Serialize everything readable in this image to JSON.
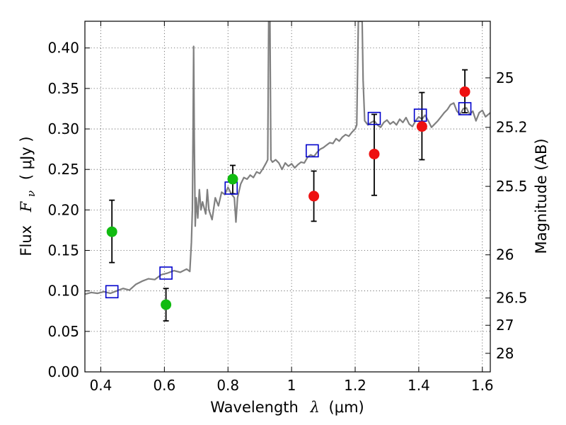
{
  "chart_data": {
    "type": "scatter",
    "xlabel_text": "Wavelength",
    "xlabel_symbol": "λ",
    "xlabel_unit": "(μm)",
    "ylabel_text": "Flux",
    "ylabel_symbol": "F",
    "ylabel_subscript": "ν",
    "ylabel_unit": "( μJy )",
    "y2label": "Magnitude (AB)",
    "xlim": [
      0.35,
      1.625
    ],
    "ylim": [
      0.0,
      0.433
    ],
    "x_ticks": [
      0.4,
      0.6,
      0.8,
      1.0,
      1.2,
      1.4,
      1.6
    ],
    "x_tick_labels": [
      "0.4",
      "0.6",
      "0.8",
      "1",
      "1.2",
      "1.4",
      "1.6"
    ],
    "y_ticks": [
      0.0,
      0.05,
      0.1,
      0.15,
      0.2,
      0.25,
      0.3,
      0.35,
      0.4
    ],
    "y_tick_labels": [
      "0.00",
      "0.05",
      "0.10",
      "0.15",
      "0.20",
      "0.25",
      "0.30",
      "0.35",
      "0.40"
    ],
    "mag_ticks": [
      25,
      25.2,
      25.5,
      26,
      26.5,
      27,
      28
    ],
    "mag_tick_labels": [
      "25",
      "25.2",
      "25.5",
      "26",
      "26.5",
      "27",
      "28"
    ],
    "grid": true,
    "colors": {
      "spectrum": "#808080",
      "green_points": "#11bb11",
      "red_points": "#ee1111",
      "model_squares": "#0000cc",
      "errorbars": "#000000"
    },
    "series": [
      {
        "name": "model spectrum",
        "kind": "line",
        "points": [
          [
            0.35,
            0.096
          ],
          [
            0.37,
            0.098
          ],
          [
            0.39,
            0.097
          ],
          [
            0.41,
            0.099
          ],
          [
            0.43,
            0.097
          ],
          [
            0.45,
            0.1
          ],
          [
            0.47,
            0.103
          ],
          [
            0.49,
            0.101
          ],
          [
            0.51,
            0.108
          ],
          [
            0.53,
            0.112
          ],
          [
            0.55,
            0.115
          ],
          [
            0.57,
            0.114
          ],
          [
            0.59,
            0.12
          ],
          [
            0.61,
            0.122
          ],
          [
            0.63,
            0.125
          ],
          [
            0.65,
            0.123
          ],
          [
            0.67,
            0.127
          ],
          [
            0.68,
            0.124
          ],
          [
            0.685,
            0.16
          ],
          [
            0.688,
            0.2
          ],
          [
            0.69,
            0.29
          ],
          [
            0.692,
            0.402
          ],
          [
            0.694,
            0.29
          ],
          [
            0.697,
            0.18
          ],
          [
            0.7,
            0.215
          ],
          [
            0.705,
            0.19
          ],
          [
            0.71,
            0.225
          ],
          [
            0.715,
            0.2
          ],
          [
            0.72,
            0.21
          ],
          [
            0.73,
            0.195
          ],
          [
            0.735,
            0.225
          ],
          [
            0.74,
            0.2
          ],
          [
            0.75,
            0.188
          ],
          [
            0.76,
            0.215
          ],
          [
            0.77,
            0.205
          ],
          [
            0.78,
            0.222
          ],
          [
            0.79,
            0.219
          ],
          [
            0.8,
            0.228
          ],
          [
            0.81,
            0.22
          ],
          [
            0.82,
            0.215
          ],
          [
            0.825,
            0.185
          ],
          [
            0.83,
            0.215
          ],
          [
            0.84,
            0.232
          ],
          [
            0.85,
            0.24
          ],
          [
            0.86,
            0.238
          ],
          [
            0.87,
            0.243
          ],
          [
            0.88,
            0.24
          ],
          [
            0.89,
            0.247
          ],
          [
            0.9,
            0.245
          ],
          [
            0.91,
            0.251
          ],
          [
            0.92,
            0.258
          ],
          [
            0.925,
            0.262
          ],
          [
            0.928,
            0.433
          ],
          [
            0.932,
            0.433
          ],
          [
            0.935,
            0.262
          ],
          [
            0.94,
            0.259
          ],
          [
            0.95,
            0.262
          ],
          [
            0.96,
            0.258
          ],
          [
            0.97,
            0.25
          ],
          [
            0.98,
            0.258
          ],
          [
            0.99,
            0.254
          ],
          [
            1.0,
            0.257
          ],
          [
            1.01,
            0.252
          ],
          [
            1.02,
            0.256
          ],
          [
            1.03,
            0.259
          ],
          [
            1.04,
            0.258
          ],
          [
            1.05,
            0.265
          ],
          [
            1.06,
            0.268
          ],
          [
            1.07,
            0.266
          ],
          [
            1.08,
            0.271
          ],
          [
            1.09,
            0.275
          ],
          [
            1.1,
            0.277
          ],
          [
            1.11,
            0.28
          ],
          [
            1.12,
            0.283
          ],
          [
            1.13,
            0.282
          ],
          [
            1.14,
            0.288
          ],
          [
            1.15,
            0.285
          ],
          [
            1.16,
            0.29
          ],
          [
            1.17,
            0.293
          ],
          [
            1.18,
            0.291
          ],
          [
            1.19,
            0.296
          ],
          [
            1.2,
            0.3
          ],
          [
            1.205,
            0.305
          ],
          [
            1.21,
            0.433
          ],
          [
            1.222,
            0.433
          ],
          [
            1.225,
            0.36
          ],
          [
            1.23,
            0.31
          ],
          [
            1.24,
            0.305
          ],
          [
            1.25,
            0.308
          ],
          [
            1.26,
            0.31
          ],
          [
            1.27,
            0.305
          ],
          [
            1.28,
            0.302
          ],
          [
            1.29,
            0.308
          ],
          [
            1.3,
            0.311
          ],
          [
            1.31,
            0.306
          ],
          [
            1.32,
            0.309
          ],
          [
            1.33,
            0.305
          ],
          [
            1.34,
            0.312
          ],
          [
            1.35,
            0.308
          ],
          [
            1.36,
            0.314
          ],
          [
            1.37,
            0.306
          ],
          [
            1.38,
            0.303
          ],
          [
            1.39,
            0.31
          ],
          [
            1.4,
            0.315
          ],
          [
            1.41,
            0.312
          ],
          [
            1.42,
            0.317
          ],
          [
            1.43,
            0.31
          ],
          [
            1.44,
            0.302
          ],
          [
            1.45,
            0.306
          ],
          [
            1.46,
            0.31
          ],
          [
            1.47,
            0.315
          ],
          [
            1.48,
            0.32
          ],
          [
            1.49,
            0.324
          ],
          [
            1.5,
            0.33
          ],
          [
            1.51,
            0.332
          ],
          [
            1.52,
            0.322
          ],
          [
            1.53,
            0.318
          ],
          [
            1.54,
            0.325
          ],
          [
            1.55,
            0.326
          ],
          [
            1.56,
            0.318
          ],
          [
            1.57,
            0.322
          ],
          [
            1.58,
            0.31
          ],
          [
            1.59,
            0.32
          ],
          [
            1.6,
            0.323
          ],
          [
            1.61,
            0.315
          ],
          [
            1.625,
            0.32
          ]
        ]
      },
      {
        "name": "model photometry",
        "kind": "square",
        "x": [
          0.435,
          0.605,
          0.81,
          1.065,
          1.26,
          1.405,
          1.545
        ],
        "y": [
          0.099,
          0.122,
          0.227,
          0.273,
          0.313,
          0.317,
          0.325
        ]
      },
      {
        "name": "observed (green)",
        "kind": "circle",
        "color": "green",
        "x": [
          0.435,
          0.605,
          0.815
        ],
        "y": [
          0.173,
          0.083,
          0.238
        ],
        "yerr_low": [
          0.135,
          0.063,
          0.22
        ],
        "yerr_high": [
          0.212,
          0.103,
          0.255
        ]
      },
      {
        "name": "observed (red)",
        "kind": "circle",
        "color": "red",
        "x": [
          1.07,
          1.26,
          1.41,
          1.545
        ],
        "y": [
          0.217,
          0.269,
          0.303,
          0.346
        ],
        "yerr_low": [
          0.186,
          0.218,
          0.262,
          0.32
        ],
        "yerr_high": [
          0.248,
          0.318,
          0.345,
          0.373
        ]
      }
    ]
  }
}
